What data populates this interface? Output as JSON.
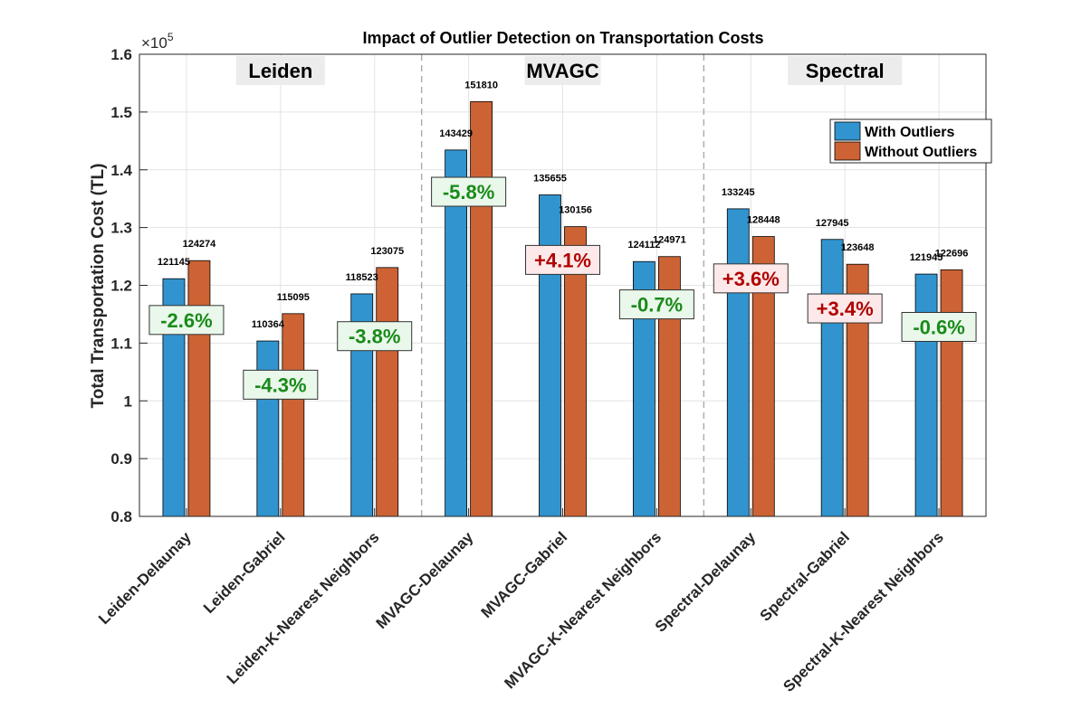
{
  "chart_data": {
    "type": "bar",
    "title": "Impact of Outlier Detection on Transportation Costs",
    "ylabel": "Total Transportation Cost (TL)",
    "xlabel": "",
    "ylim": [
      80000,
      160000
    ],
    "yticks": [
      80000,
      90000,
      100000,
      110000,
      120000,
      130000,
      140000,
      150000,
      160000
    ],
    "ytick_labels": [
      "0.8",
      "0.9",
      "1",
      "1.1",
      "1.2",
      "1.3",
      "1.4",
      "1.5",
      "1.6"
    ],
    "y_exponent_base": "×10",
    "y_exponent_power": "5",
    "grid": true,
    "legend_position": "top-right",
    "categories": [
      "Leiden-Delaunay",
      "Leiden-Gabriel",
      "Leiden-K-Nearest Neighbors",
      "MVAGC-Delaunay",
      "MVAGC-Gabriel",
      "MVAGC-K-Nearest Neighbors",
      "Spectral-Delaunay",
      "Spectral-Gabriel",
      "Spectral-K-Nearest Neighbors"
    ],
    "series": [
      {
        "name": "With Outliers",
        "color": "#3194cf",
        "values": [
          121145,
          110364,
          118523,
          143429,
          135655,
          124112,
          133245,
          127945,
          121945
        ]
      },
      {
        "name": "Without Outliers",
        "color": "#cd6334",
        "values": [
          124274,
          115095,
          123075,
          151810,
          130156,
          124971,
          128448,
          123648,
          122696
        ]
      }
    ],
    "bar_labels_with": [
      "121145",
      "110364",
      "118523",
      "143429",
      "135655",
      "124112",
      "133245",
      "127945",
      "121945"
    ],
    "bar_labels_without": [
      "124274",
      "115095",
      "123075",
      "151810",
      "130156",
      "124971",
      "128448",
      "123648",
      "122696"
    ],
    "pct_changes": [
      "-2.6%",
      "-4.3%",
      "-3.8%",
      "-5.8%",
      "+4.1%",
      "-0.7%",
      "+3.6%",
      "+3.4%",
      "-0.6%"
    ],
    "pct_label_values": [
      114000,
      102800,
      111200,
      136200,
      124400,
      116700,
      121200,
      116000,
      112800
    ],
    "group_labels": [
      "Leiden",
      "MVAGC",
      "Spectral"
    ],
    "colors": {
      "decrease_text": "#1a8a1a",
      "decrease_bg": "#e9f8ea",
      "increase_text": "#b00000",
      "increase_bg": "#fde9e9",
      "group_label_bg": "#ececec",
      "grid": "#e3e3e3",
      "separator": "#aaaaaa"
    }
  }
}
